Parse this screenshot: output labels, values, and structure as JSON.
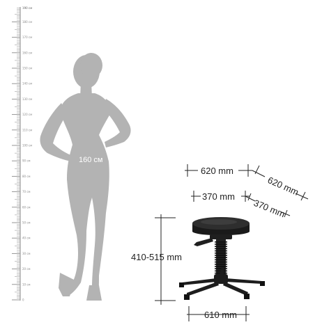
{
  "ruler": {
    "labels": [
      "0",
      "10 см",
      "20 см",
      "30 см",
      "40 см",
      "50 см",
      "60 см",
      "70 см",
      "80 см",
      "90 см",
      "100 см",
      "110 см",
      "120 см",
      "130 см",
      "140 см",
      "150 см",
      "160 см",
      "170 см",
      "180 см",
      "190 см",
      "190 см"
    ],
    "max_cm": 190
  },
  "figure": {
    "height_label": "160 см"
  },
  "dimensions": {
    "width_top": "620 mm",
    "depth_top": "620 mm",
    "seat_width": "370 mm",
    "seat_depth": "370 mm",
    "height_range": "410-515 mm",
    "base_width": "610 mm"
  },
  "colors": {
    "silhouette": "#b3b3b3",
    "stool": "#1f1f1f",
    "ruler": "#8a8a8a",
    "dimension_line": "#222222"
  }
}
